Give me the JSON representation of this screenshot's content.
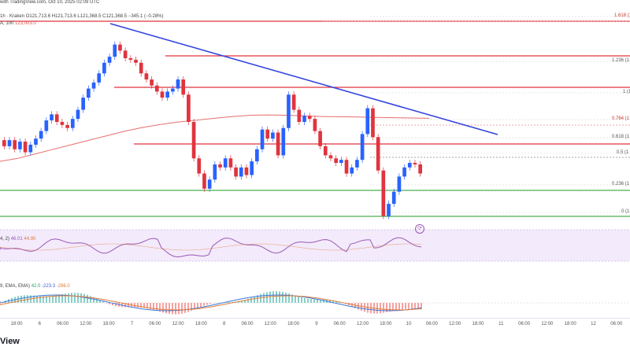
{
  "header": {
    "line1": "with TradingView.com, Oct 10, 2025 02:09 UTC",
    "line2_prefix": "1h · Kraken",
    "ohlc": "O121,713.6 H121,713.6 L121,368.5 C121,368.5 −345.1 (−0.28%)",
    "ma_label": "A, 100",
    "ma_value": "123,003.0"
  },
  "rsi_header": {
    "label": "4, 2)",
    "v1": "46.01",
    "v2": "44.90"
  },
  "macd_header": {
    "label": "9, EMA, EMA)",
    "v1": "42.0",
    "v2": "-223.3",
    "v3": "-286.0"
  },
  "fib_levels": [
    {
      "label": "1.618 (1"
    },
    {
      "label": "1.236 (1"
    },
    {
      "label": "1 (1"
    },
    {
      "label": "0.764 (1"
    },
    {
      "label": "0.618 (1"
    },
    {
      "label": "0.5 (1"
    },
    {
      "label": "0.236 (1"
    },
    {
      "label": "0 (1"
    }
  ],
  "time_axis": [
    "18:00",
    "6",
    "06:00",
    "12:00",
    "18:00",
    "7",
    "06:00",
    "12:00",
    "18:00",
    "8",
    "06:00",
    "12:00",
    "18:00",
    "9",
    "06:00",
    "12:00",
    "18:00",
    "10",
    "06:00",
    "12:00",
    "18:00",
    "11",
    "06:00",
    "12:00",
    "18:00",
    "12",
    "06:00"
  ],
  "brand": "View",
  "colors": {
    "up": "#2962ff",
    "down": "#e0343e",
    "resistance": "#e0343e",
    "trendline": "#3344dd",
    "ma": "#e05555",
    "support": "#4caf50",
    "rsi": "#9b59b6",
    "macd_signal": "#e07b39",
    "macd_line": "#3a78d9"
  },
  "chart_data": {
    "type": "candlestick",
    "title": "",
    "candles": [
      {
        "o": 121900,
        "c": 121700
      },
      {
        "o": 121700,
        "c": 121900
      },
      {
        "o": 121900,
        "c": 121600
      },
      {
        "o": 121600,
        "c": 121850
      },
      {
        "o": 121850,
        "c": 121500
      },
      {
        "o": 121500,
        "c": 121750
      },
      {
        "o": 121750,
        "c": 121950
      },
      {
        "o": 121950,
        "c": 122200
      },
      {
        "o": 122200,
        "c": 122550
      },
      {
        "o": 122550,
        "c": 122750
      },
      {
        "o": 122750,
        "c": 122500
      },
      {
        "o": 122500,
        "c": 122400
      },
      {
        "o": 122400,
        "c": 122300
      },
      {
        "o": 122300,
        "c": 122600
      },
      {
        "o": 122600,
        "c": 122900
      },
      {
        "o": 122900,
        "c": 123300
      },
      {
        "o": 123300,
        "c": 123600
      },
      {
        "o": 123600,
        "c": 123800
      },
      {
        "o": 123800,
        "c": 124100
      },
      {
        "o": 124100,
        "c": 124450
      },
      {
        "o": 124450,
        "c": 124650
      },
      {
        "o": 124650,
        "c": 125050
      },
      {
        "o": 125050,
        "c": 124850
      },
      {
        "o": 124850,
        "c": 124600
      },
      {
        "o": 124600,
        "c": 124550
      },
      {
        "o": 124550,
        "c": 124450
      },
      {
        "o": 124450,
        "c": 124100
      },
      {
        "o": 124100,
        "c": 123900
      },
      {
        "o": 123900,
        "c": 123700
      },
      {
        "o": 123700,
        "c": 123500
      },
      {
        "o": 123500,
        "c": 123300
      },
      {
        "o": 123300,
        "c": 123500
      },
      {
        "o": 123500,
        "c": 123600
      },
      {
        "o": 123600,
        "c": 123900
      },
      {
        "o": 123900,
        "c": 123400
      },
      {
        "o": 123400,
        "c": 122500
      },
      {
        "o": 122500,
        "c": 121300
      },
      {
        "o": 121300,
        "c": 120800
      },
      {
        "o": 120800,
        "c": 120300
      },
      {
        "o": 120300,
        "c": 120600
      },
      {
        "o": 120600,
        "c": 121100
      },
      {
        "o": 121100,
        "c": 121000
      },
      {
        "o": 121000,
        "c": 121300
      },
      {
        "o": 121300,
        "c": 121000
      },
      {
        "o": 121000,
        "c": 120700
      },
      {
        "o": 120700,
        "c": 121000
      },
      {
        "o": 121000,
        "c": 120750
      },
      {
        "o": 120750,
        "c": 121200
      },
      {
        "o": 121200,
        "c": 121600
      },
      {
        "o": 121600,
        "c": 122250
      },
      {
        "o": 122250,
        "c": 121950
      },
      {
        "o": 121950,
        "c": 122150
      },
      {
        "o": 122150,
        "c": 121400
      },
      {
        "o": 121400,
        "c": 122300
      },
      {
        "o": 122300,
        "c": 123400
      },
      {
        "o": 123400,
        "c": 122900
      },
      {
        "o": 122900,
        "c": 122500
      },
      {
        "o": 122500,
        "c": 122700
      },
      {
        "o": 122700,
        "c": 122600
      },
      {
        "o": 122600,
        "c": 122200
      },
      {
        "o": 122200,
        "c": 121700
      },
      {
        "o": 121700,
        "c": 121400
      },
      {
        "o": 121400,
        "c": 121300
      },
      {
        "o": 121300,
        "c": 121150
      },
      {
        "o": 121150,
        "c": 121250
      },
      {
        "o": 121250,
        "c": 120800
      },
      {
        "o": 120800,
        "c": 121000
      },
      {
        "o": 121000,
        "c": 121250
      },
      {
        "o": 121250,
        "c": 122100
      },
      {
        "o": 122100,
        "c": 122950
      },
      {
        "o": 122950,
        "c": 122000
      },
      {
        "o": 122000,
        "c": 120900
      },
      {
        "o": 120900,
        "c": 119400
      },
      {
        "o": 119400,
        "c": 119800
      },
      {
        "o": 119800,
        "c": 120200
      },
      {
        "o": 120200,
        "c": 120700
      },
      {
        "o": 120700,
        "c": 121000
      },
      {
        "o": 121000,
        "c": 121150
      },
      {
        "o": 121150,
        "c": 121100
      },
      {
        "o": 121100,
        "c": 120800
      }
    ],
    "ma_series": [
      121200,
      121300,
      121450,
      121600,
      121750,
      121900,
      122050,
      122200,
      122320,
      122420,
      122500,
      122560,
      122620,
      122680,
      122720,
      122730,
      122720,
      122700,
      122680,
      122670,
      122660,
      122650,
      122640,
      122630,
      122620
    ]
  }
}
